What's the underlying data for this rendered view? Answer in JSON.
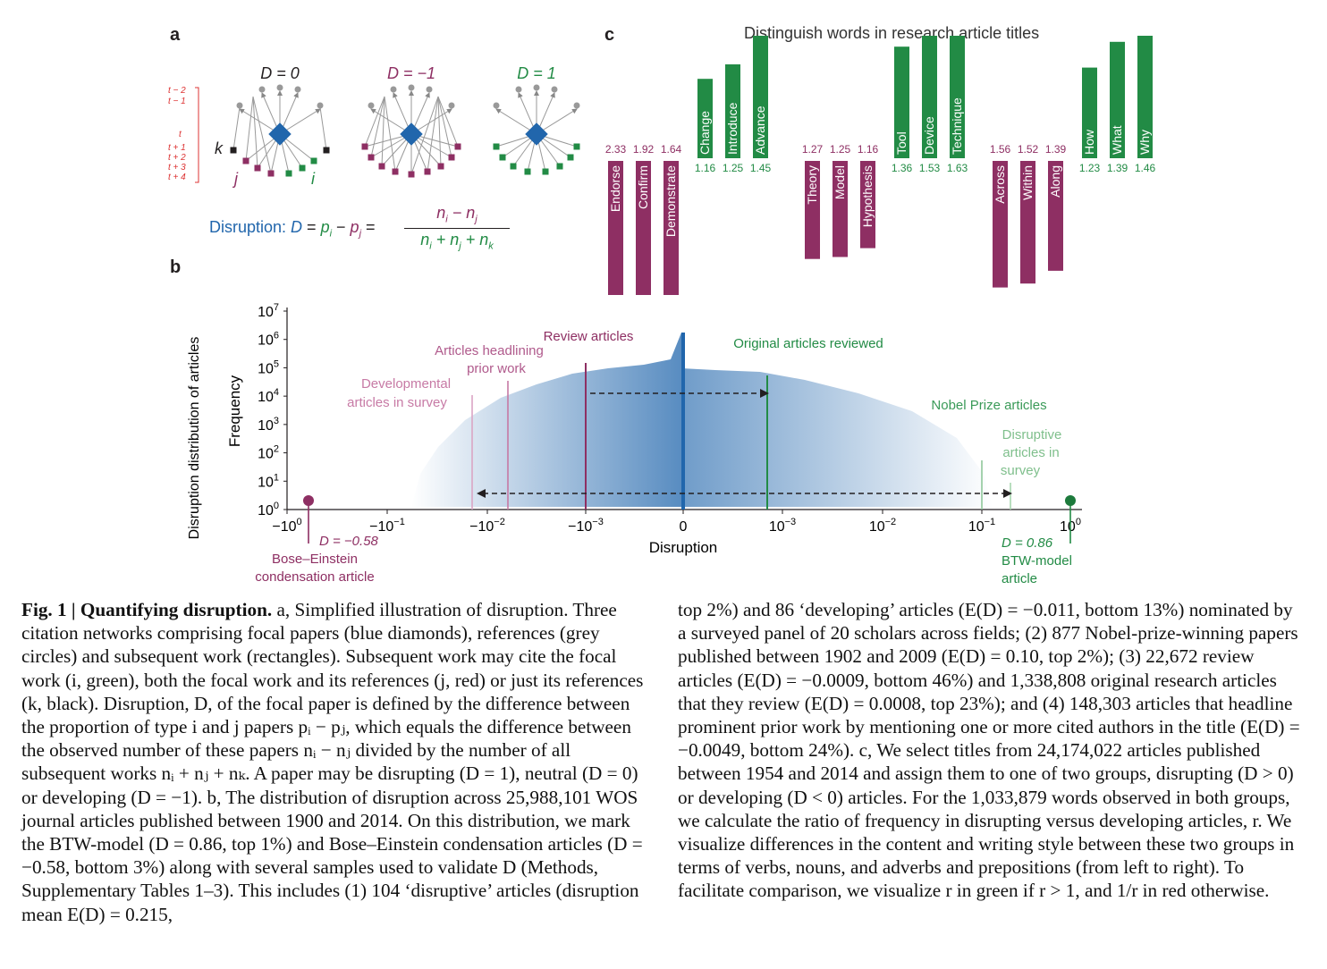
{
  "panel_a": {
    "letter": "a",
    "titles": [
      "D = 0",
      "D = −1",
      "D = 1"
    ],
    "time_labels": [
      "t − 2",
      "t − 1",
      "t",
      "t + 1",
      "t + 2",
      "t + 3",
      "t + 4"
    ],
    "k_label": "k",
    "j_label": "j",
    "i_label": "i",
    "formula_prefix": "Disruption: ",
    "formula_lhs": "D = p",
    "formula_numer": "n_i − n_j",
    "formula_denom": "n_i + n_j + n_k"
  },
  "panel_b": {
    "letter": "b",
    "outer_ylabel": "Disruption distribution of articles",
    "ylabel": "Frequency",
    "xlabel": "Disruption",
    "yticks": [
      "10",
      "10",
      "10",
      "10",
      "10",
      "10",
      "10",
      "10"
    ],
    "yexp": [
      "0",
      "1",
      "2",
      "3",
      "4",
      "5",
      "6",
      "7"
    ],
    "xticks": [
      "−10",
      "−10",
      "−10",
      "−10",
      "0",
      "10",
      "10",
      "10",
      "10"
    ],
    "xexp": [
      "0",
      "−1",
      "−2",
      "−3",
      "",
      "−3",
      "−2",
      "−1",
      "0"
    ],
    "annotations": {
      "review": "Review articles",
      "headlining_1": "Articles headlining",
      "headlining_2": "prior work",
      "developmental_1": "Developmental",
      "developmental_2": "articles in survey",
      "original": "Original articles reviewed",
      "nobel": "Nobel Prize articles",
      "disruptive_1": "Disruptive",
      "disruptive_2": "articles in",
      "disruptive_3": "survey",
      "bose_d": "D = −0.58",
      "bose_1": "Bose–Einstein",
      "bose_2": "condensation article",
      "btw_d": "D = 0.86",
      "btw_1": "BTW-model",
      "btw_2": "article"
    }
  },
  "panel_c": {
    "letter": "c",
    "title": "Distinguish words in research article titles",
    "groups": [
      {
        "red": [
          {
            "word": "Endorse",
            "value": "2.33"
          },
          {
            "word": "Confirm",
            "value": "1.92"
          },
          {
            "word": "Demonstrate",
            "value": "1.64"
          }
        ],
        "green": [
          {
            "word": "Change",
            "value": "1.16"
          },
          {
            "word": "Introduce",
            "value": "1.25"
          },
          {
            "word": "Advance",
            "value": "1.45"
          }
        ]
      },
      {
        "red": [
          {
            "word": "Theory",
            "value": "1.27"
          },
          {
            "word": "Model",
            "value": "1.25"
          },
          {
            "word": "Hypothesis",
            "value": "1.16"
          }
        ],
        "green": [
          {
            "word": "Tool",
            "value": "1.36"
          },
          {
            "word": "Device",
            "value": "1.53"
          },
          {
            "word": "Technique",
            "value": "1.63"
          }
        ]
      },
      {
        "red": [
          {
            "word": "Across",
            "value": "1.56"
          },
          {
            "word": "Within",
            "value": "1.52"
          },
          {
            "word": "Along",
            "value": "1.39"
          }
        ],
        "green": [
          {
            "word": "How",
            "value": "1.23"
          },
          {
            "word": "What",
            "value": "1.39"
          },
          {
            "word": "Why",
            "value": "1.46"
          }
        ]
      }
    ]
  },
  "colors": {
    "red": "#8e2f63",
    "green": "#228b45",
    "blue": "#2166ac",
    "pink": "#c77aa5",
    "light_green": "#8fc79a"
  },
  "caption_left": {
    "lead": "Fig. 1 | Quantifying disruption.",
    "text": " a, Simplified illustration of disruption. Three citation networks comprising focal papers (blue diamonds), references (grey circles) and subsequent work (rectangles). Subsequent work may cite the focal work (i, green), both the focal work and its references (j, red) or just its references (k, black). Disruption, D, of the focal paper is defined by the difference between the proportion of type i and j papers pᵢ − pⱼ, which equals the difference between the observed number of these papers nᵢ − nⱼ divided by the number of all subsequent works nᵢ + nⱼ + nₖ. A paper may be disrupting (D = 1), neutral (D = 0) or developing (D = −1). b, The distribution of disruption across 25,988,101 WOS journal articles published between 1900 and 2014. On this distribution, we mark the BTW-model (D = 0.86, top 1%) and Bose–Einstein condensation articles (D = −0.58, bottom 3%) along with several samples used to validate D (Methods, Supplementary Tables 1–3). This includes (1) 104 ‘disruptive’ articles (disruption mean E(D) = 0.215,"
  },
  "caption_right": {
    "text": "top 2%) and 86 ‘developing’ articles (E(D) = −0.011, bottom 13%) nominated by a surveyed panel of 20 scholars across fields; (2) 877 Nobel-prize-winning papers published between 1902 and 2009 (E(D) = 0.10, top 2%); (3) 22,672 review articles (E(D) = −0.0009, bottom 46%) and 1,338,808 original research articles that they review (E(D) = 0.0008, top 23%); and (4) 148,303 articles that headline prominent prior work by mentioning one or more cited authors in the title (E(D) = −0.0049, bottom 24%). c, We select titles from 24,174,022 articles published between 1954 and 2014 and assign them to one of two groups, disrupting (D > 0) or developing (D < 0) articles. For the 1,033,879 words observed in both groups, we calculate the ratio of frequency in disrupting versus developing articles, r. We visualize differences in the content and writing style between these two groups in terms of verbs, nouns, and adverbs and prepositions (from left to right). To facilitate comparison, we visualize r in green if r > 1, and 1/r in red otherwise."
  }
}
